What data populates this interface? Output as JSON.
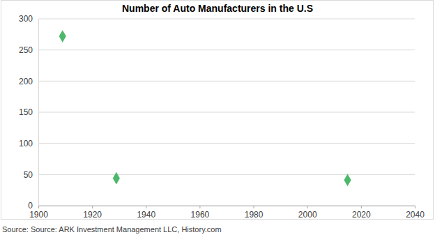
{
  "chart_data": {
    "type": "scatter",
    "title": "Number of Auto Manufacturers in the U.S",
    "source": "Source: Source: ARK Investment Management LLC, History.com",
    "x": [
      1909,
      1929,
      2015
    ],
    "values": [
      272,
      44,
      41
    ],
    "color": "#4cb86b",
    "marker": "diamond",
    "xlim": [
      1900,
      2040
    ],
    "xticks": [
      1900,
      1920,
      1940,
      1960,
      1980,
      2000,
      2020,
      2040
    ],
    "ylim": [
      0,
      300
    ],
    "yticks": [
      0,
      50,
      100,
      150,
      200,
      250,
      300
    ],
    "grid": true
  }
}
